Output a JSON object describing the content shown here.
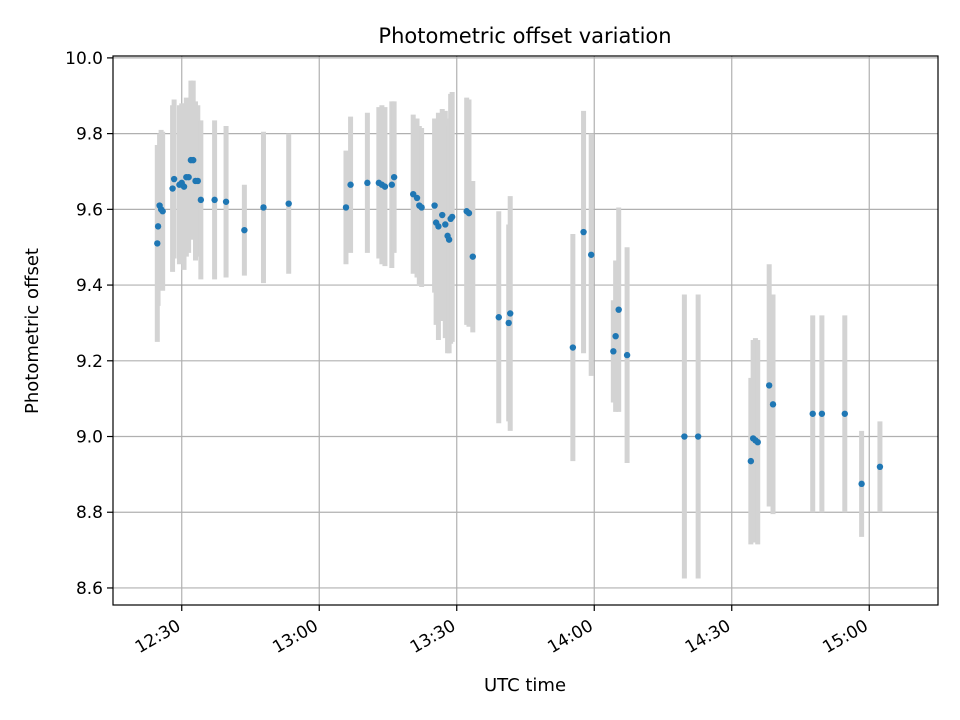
{
  "chart_data": {
    "type": "scatter",
    "title": "Photometric offset variation",
    "xlabel": "UTC time",
    "ylabel": "Photometric offset",
    "xlim": [
      "12:15",
      "15:15"
    ],
    "ylim": [
      8.555,
      10.005
    ],
    "xticks": [
      "12:30",
      "13:00",
      "13:30",
      "14:00",
      "14:30",
      "15:00"
    ],
    "yticks": [
      "8.6",
      "8.8",
      "9.0",
      "9.2",
      "9.4",
      "9.6",
      "9.8",
      "10.0"
    ],
    "grid": true,
    "colors": {
      "point": "#1f77b4",
      "errorbar": "#d3d3d3"
    },
    "points": [
      {
        "x": "12:24:40",
        "y": 9.51,
        "err": 0.26
      },
      {
        "x": "12:24:50",
        "y": 9.555,
        "err": 0.21
      },
      {
        "x": "12:25:10",
        "y": 9.61,
        "err": 0.19
      },
      {
        "x": "12:25:30",
        "y": 9.6,
        "err": 0.21
      },
      {
        "x": "12:25:50",
        "y": 9.595,
        "err": 0.21
      },
      {
        "x": "12:28:00",
        "y": 9.655,
        "err": 0.22
      },
      {
        "x": "12:28:20",
        "y": 9.68,
        "err": 0.21
      },
      {
        "x": "12:29:30",
        "y": 9.665,
        "err": 0.21
      },
      {
        "x": "12:30:00",
        "y": 9.67,
        "err": 0.21
      },
      {
        "x": "12:30:30",
        "y": 9.66,
        "err": 0.22
      },
      {
        "x": "12:31:00",
        "y": 9.685,
        "err": 0.21
      },
      {
        "x": "12:31:30",
        "y": 9.685,
        "err": 0.2
      },
      {
        "x": "12:32:00",
        "y": 9.73,
        "err": 0.21
      },
      {
        "x": "12:32:30",
        "y": 9.73,
        "err": 0.21
      },
      {
        "x": "12:33:00",
        "y": 9.675,
        "err": 0.21
      },
      {
        "x": "12:33:30",
        "y": 9.675,
        "err": 0.2
      },
      {
        "x": "12:34:10",
        "y": 9.625,
        "err": 0.21
      },
      {
        "x": "12:37:10",
        "y": 9.625,
        "err": 0.21
      },
      {
        "x": "12:39:40",
        "y": 9.62,
        "err": 0.2
      },
      {
        "x": "12:43:40",
        "y": 9.545,
        "err": 0.12
      },
      {
        "x": "12:47:50",
        "y": 9.605,
        "err": 0.2
      },
      {
        "x": "12:53:20",
        "y": 9.615,
        "err": 0.185
      },
      {
        "x": "13:05:50",
        "y": 9.605,
        "err": 0.15
      },
      {
        "x": "13:06:50",
        "y": 9.665,
        "err": 0.18
      },
      {
        "x": "13:10:30",
        "y": 9.67,
        "err": 0.185
      },
      {
        "x": "13:13:00",
        "y": 9.67,
        "err": 0.2
      },
      {
        "x": "13:13:40",
        "y": 9.665,
        "err": 0.21
      },
      {
        "x": "13:14:20",
        "y": 9.66,
        "err": 0.21
      },
      {
        "x": "13:15:50",
        "y": 9.665,
        "err": 0.22
      },
      {
        "x": "13:16:20",
        "y": 9.685,
        "err": 0.2
      },
      {
        "x": "13:20:30",
        "y": 9.64,
        "err": 0.21
      },
      {
        "x": "13:21:20",
        "y": 9.63,
        "err": 0.21
      },
      {
        "x": "13:21:50",
        "y": 9.61,
        "err": 0.21
      },
      {
        "x": "13:22:20",
        "y": 9.605,
        "err": 0.21
      },
      {
        "x": "13:25:10",
        "y": 9.61,
        "err": 0.23
      },
      {
        "x": "13:25:30",
        "y": 9.565,
        "err": 0.27
      },
      {
        "x": "13:26:00",
        "y": 9.555,
        "err": 0.3
      },
      {
        "x": "13:26:50",
        "y": 9.585,
        "err": 0.28
      },
      {
        "x": "13:27:30",
        "y": 9.56,
        "err": 0.3
      },
      {
        "x": "13:28:00",
        "y": 9.53,
        "err": 0.31
      },
      {
        "x": "13:28:20",
        "y": 9.52,
        "err": 0.3
      },
      {
        "x": "13:28:40",
        "y": 9.575,
        "err": 0.33
      },
      {
        "x": "13:29:00",
        "y": 9.58,
        "err": 0.33
      },
      {
        "x": "13:32:10",
        "y": 9.595,
        "err": 0.3
      },
      {
        "x": "13:32:40",
        "y": 9.59,
        "err": 0.3
      },
      {
        "x": "13:33:30",
        "y": 9.475,
        "err": 0.2
      },
      {
        "x": "13:39:10",
        "y": 9.315,
        "err": 0.28
      },
      {
        "x": "13:41:20",
        "y": 9.3,
        "err": 0.26
      },
      {
        "x": "13:41:40",
        "y": 9.325,
        "err": 0.31
      },
      {
        "x": "13:55:20",
        "y": 9.235,
        "err": 0.3
      },
      {
        "x": "13:57:40",
        "y": 9.54,
        "err": 0.32
      },
      {
        "x": "13:59:20",
        "y": 9.48,
        "err": 0.32
      },
      {
        "x": "14:04:10",
        "y": 9.225,
        "err": 0.135
      },
      {
        "x": "14:04:40",
        "y": 9.265,
        "err": 0.2
      },
      {
        "x": "14:05:20",
        "y": 9.335,
        "err": 0.27
      },
      {
        "x": "14:07:10",
        "y": 9.215,
        "err": 0.285
      },
      {
        "x": "14:19:40",
        "y": 9.0,
        "err": 0.375
      },
      {
        "x": "14:22:40",
        "y": 9.0,
        "err": 0.375
      },
      {
        "x": "14:34:10",
        "y": 8.935,
        "err": 0.22
      },
      {
        "x": "14:34:40",
        "y": 8.995,
        "err": 0.26
      },
      {
        "x": "14:35:10",
        "y": 8.99,
        "err": 0.27
      },
      {
        "x": "14:35:40",
        "y": 8.985,
        "err": 0.27
      },
      {
        "x": "14:38:10",
        "y": 9.135,
        "err": 0.32
      },
      {
        "x": "14:39:00",
        "y": 9.085,
        "err": 0.29
      },
      {
        "x": "14:47:40",
        "y": 9.06,
        "err": 0.26
      },
      {
        "x": "14:49:40",
        "y": 9.06,
        "err": 0.26
      },
      {
        "x": "14:54:40",
        "y": 9.06,
        "err": 0.26
      },
      {
        "x": "14:58:20",
        "y": 8.875,
        "err": 0.14
      },
      {
        "x": "15:02:20",
        "y": 8.92,
        "err": 0.12
      }
    ]
  }
}
